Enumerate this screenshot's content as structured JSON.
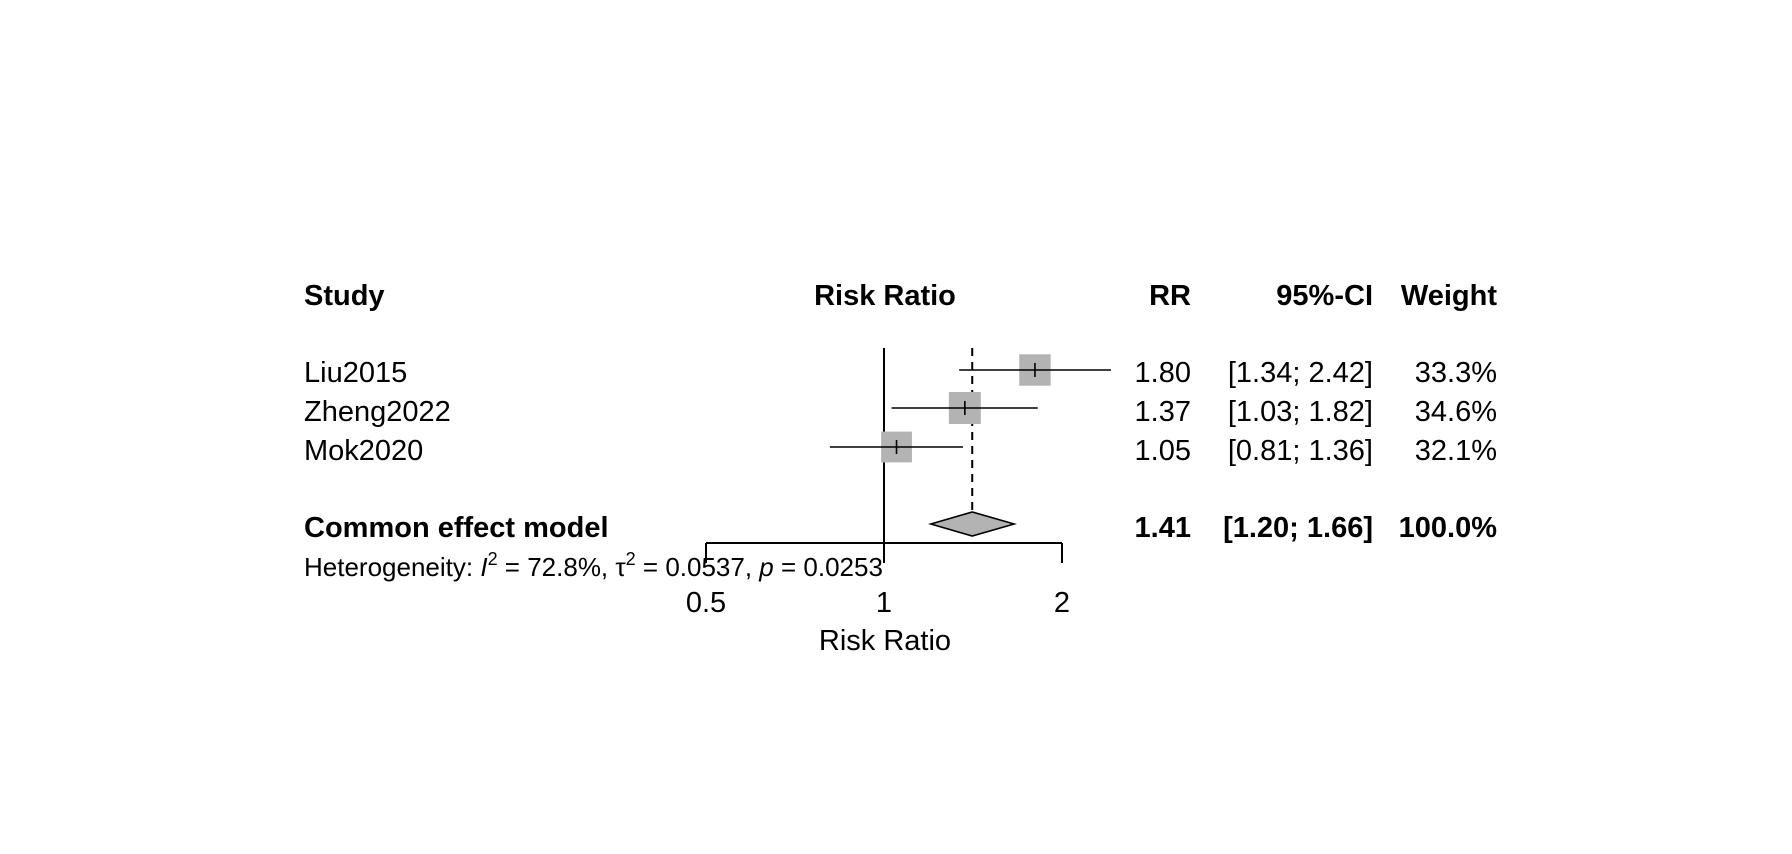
{
  "chart_data": {
    "type": "forest",
    "headers": {
      "study": "Study",
      "plot": "Risk Ratio",
      "rr": "RR",
      "ci": "95%-CI",
      "weight": "Weight"
    },
    "studies": [
      {
        "name": "Liu2015",
        "rr": 1.8,
        "lower": 1.34,
        "upper": 2.42,
        "weight": 33.3,
        "rr_text": "1.80",
        "ci_text": "[1.34; 2.42]",
        "weight_text": "33.3%"
      },
      {
        "name": "Zheng2022",
        "rr": 1.37,
        "lower": 1.03,
        "upper": 1.82,
        "weight": 34.6,
        "rr_text": "1.37",
        "ci_text": "[1.03; 1.82]",
        "weight_text": "34.6%"
      },
      {
        "name": "Mok2020",
        "rr": 1.05,
        "lower": 0.81,
        "upper": 1.36,
        "weight": 32.1,
        "rr_text": "1.05",
        "ci_text": "[0.81; 1.36]",
        "weight_text": "32.1%"
      }
    ],
    "pooled": {
      "label": "Common effect model",
      "rr": 1.41,
      "lower": 1.2,
      "upper": 1.66,
      "rr_text": "1.41",
      "ci_text": "[1.20; 1.66]",
      "weight_text": "100.0%"
    },
    "heterogeneity": {
      "prefix": "Heterogeneity: ",
      "i2_symbol": "I",
      "i2_text": " = 72.8%, ",
      "tau2_symbol": "τ",
      "tau2_text": " = 0.0537, ",
      "p_symbol": "p",
      "p_text": " = 0.0253",
      "superscript": "2"
    },
    "x_axis": {
      "label": "Risk Ratio",
      "scale": "log",
      "ticks": [
        0.5,
        1,
        2
      ],
      "tick_labels": [
        "0.5",
        "1",
        "2"
      ],
      "range": [
        0.5,
        2
      ],
      "reference_line": 1
    },
    "colors": {
      "square": "#b3b3b3",
      "diamond": "#b3b3b3",
      "lines": "#000000"
    }
  }
}
